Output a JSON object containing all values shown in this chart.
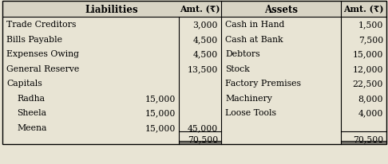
{
  "header_liabilities": "Liabilities",
  "header_amt1": "Amt. (₹)",
  "header_assets": "Assets",
  "header_amt2": "Amt. (₹)",
  "liabilities_rows": [
    {
      "col1": "Trade Creditors",
      "col2": "",
      "col3": "3,000"
    },
    {
      "col1": "Bills Payable",
      "col2": "",
      "col3": "4,500"
    },
    {
      "col1": "Expenses Owing",
      "col2": "",
      "col3": "4,500"
    },
    {
      "col1": "General Reserve",
      "col2": "",
      "col3": "13,500"
    },
    {
      "col1": "Capitals",
      "col2": "",
      "col3": ""
    },
    {
      "col1": "   Radha",
      "col2": "15,000",
      "col3": ""
    },
    {
      "col1": "   Sheela",
      "col2": "15,000",
      "col3": ""
    },
    {
      "col1": "   Meena",
      "col2": "15,000",
      "col3": "45,000"
    }
  ],
  "assets_rows": [
    {
      "col1": "Cash in Hand",
      "col2": "1,500"
    },
    {
      "col1": "Cash at Bank",
      "col2": "7,500"
    },
    {
      "col1": "Debtors",
      "col2": "15,000"
    },
    {
      "col1": "Stock",
      "col2": "12,000"
    },
    {
      "col1": "Factory Premises",
      "col2": "22,500"
    },
    {
      "col1": "Machinery",
      "col2": "8,000"
    },
    {
      "col1": "Loose Tools",
      "col2": "4,000"
    },
    {
      "col1": "",
      "col2": ""
    }
  ],
  "total_liabilities": "70,500",
  "total_assets": "70,500",
  "bg_color": "#e8e4d4",
  "header_bg": "#d8d4c4",
  "font_size": 7.8,
  "header_font_size": 8.5
}
